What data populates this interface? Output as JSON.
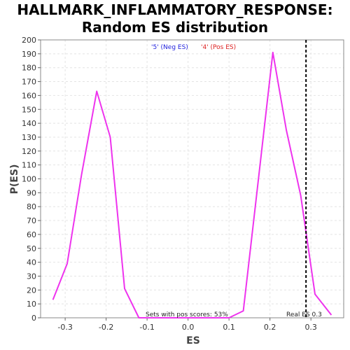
{
  "chart_data": {
    "type": "line",
    "title_line1": "HALLMARK_INFLAMMATORY_RESPONSE:",
    "title_line2": "Random ES distribution",
    "xlabel": "ES",
    "ylabel": "P(ES)",
    "xlim": [
      -0.36,
      0.38
    ],
    "ylim": [
      0,
      200
    ],
    "x_ticks": [
      -0.3,
      -0.2,
      -0.1,
      0.0,
      0.1,
      0.2,
      0.3
    ],
    "x_tick_labels": [
      "-0.3",
      "-0.2",
      "-0.1",
      "0.0",
      "0.1",
      "0.2",
      "0.3"
    ],
    "y_ticks": [
      0,
      10,
      20,
      30,
      40,
      50,
      60,
      70,
      80,
      90,
      100,
      110,
      120,
      130,
      140,
      150,
      160,
      170,
      180,
      190,
      200
    ],
    "y_tick_labels": [
      "0",
      "10",
      "20",
      "30",
      "40",
      "50",
      "60",
      "70",
      "80",
      "90",
      "100",
      "110",
      "120",
      "130",
      "140",
      "150",
      "160",
      "170",
      "180",
      "190",
      "200"
    ],
    "grid": true,
    "legend": {
      "neg_label": "'5' (Neg ES)",
      "pos_label": "'4' (Pos ES)",
      "neg_color": "#2222dd",
      "pos_color": "#dd2222",
      "placement": "top-center"
    },
    "series": [
      {
        "color": "#ee33ee",
        "x": [
          -0.33,
          -0.295,
          -0.26,
          -0.223,
          -0.19,
          -0.155,
          -0.12,
          -0.09,
          0.1,
          0.135,
          0.17,
          0.207,
          0.24,
          0.275,
          0.31,
          0.35
        ],
        "y": [
          13,
          39,
          103,
          163,
          130,
          21,
          0,
          0,
          0,
          5,
          95,
          191,
          135,
          88,
          17,
          2
        ]
      }
    ],
    "real_es": {
      "value": 0.288,
      "label": "Real ES 0.3",
      "color": "#000000"
    },
    "annotation": "Sets with pos scores: 53%"
  }
}
